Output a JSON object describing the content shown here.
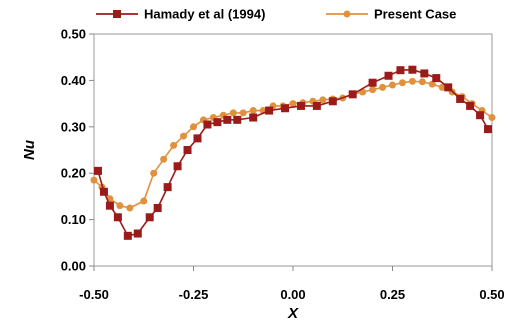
{
  "chart_data": {
    "type": "line",
    "title": "",
    "xlabel": "X",
    "ylabel": "Nu",
    "xlim": [
      -0.5,
      0.5
    ],
    "ylim": [
      0.0,
      0.5
    ],
    "x_ticks": [
      "-0.50",
      "-0.25",
      "0.00",
      "0.25",
      "0.50"
    ],
    "x_tick_values": [
      -0.5,
      -0.25,
      0.0,
      0.25,
      0.5
    ],
    "y_ticks": [
      "0.00",
      "0.10",
      "0.20",
      "0.30",
      "0.40",
      "0.50"
    ],
    "y_tick_values": [
      0.0,
      0.1,
      0.2,
      0.3,
      0.4,
      0.5
    ],
    "grid": false,
    "legend_position": "top",
    "series": [
      {
        "name": "Hamady et al (1994)",
        "color": "#9b1b1b",
        "marker": "square",
        "x": [
          -0.49,
          -0.475,
          -0.46,
          -0.44,
          -0.415,
          -0.39,
          -0.36,
          -0.34,
          -0.315,
          -0.29,
          -0.265,
          -0.24,
          -0.215,
          -0.19,
          -0.165,
          -0.14,
          -0.1,
          -0.06,
          -0.02,
          0.02,
          0.06,
          0.1,
          0.15,
          0.2,
          0.24,
          0.27,
          0.3,
          0.33,
          0.36,
          0.39,
          0.42,
          0.445,
          0.47,
          0.49
        ],
        "y": [
          0.205,
          0.16,
          0.13,
          0.105,
          0.065,
          0.07,
          0.105,
          0.125,
          0.17,
          0.215,
          0.25,
          0.275,
          0.305,
          0.31,
          0.315,
          0.315,
          0.32,
          0.335,
          0.34,
          0.345,
          0.345,
          0.355,
          0.37,
          0.395,
          0.41,
          0.422,
          0.423,
          0.415,
          0.405,
          0.385,
          0.36,
          0.345,
          0.325,
          0.295
        ]
      },
      {
        "name": "Present Case",
        "color": "#e0913e",
        "marker": "circle",
        "x": [
          -0.5,
          -0.48,
          -0.46,
          -0.435,
          -0.41,
          -0.375,
          -0.35,
          -0.325,
          -0.3,
          -0.275,
          -0.25,
          -0.225,
          -0.2,
          -0.175,
          -0.15,
          -0.125,
          -0.1,
          -0.075,
          -0.05,
          -0.025,
          0.0,
          0.025,
          0.05,
          0.075,
          0.1,
          0.125,
          0.15,
          0.175,
          0.2,
          0.225,
          0.25,
          0.275,
          0.3,
          0.325,
          0.35,
          0.375,
          0.4,
          0.425,
          0.45,
          0.475,
          0.5
        ],
        "y": [
          0.185,
          0.17,
          0.145,
          0.13,
          0.125,
          0.14,
          0.2,
          0.23,
          0.26,
          0.28,
          0.3,
          0.315,
          0.32,
          0.325,
          0.33,
          0.33,
          0.335,
          0.335,
          0.345,
          0.345,
          0.35,
          0.352,
          0.355,
          0.358,
          0.36,
          0.362,
          0.37,
          0.375,
          0.38,
          0.385,
          0.39,
          0.395,
          0.398,
          0.397,
          0.392,
          0.385,
          0.375,
          0.365,
          0.35,
          0.335,
          0.32
        ]
      }
    ]
  }
}
